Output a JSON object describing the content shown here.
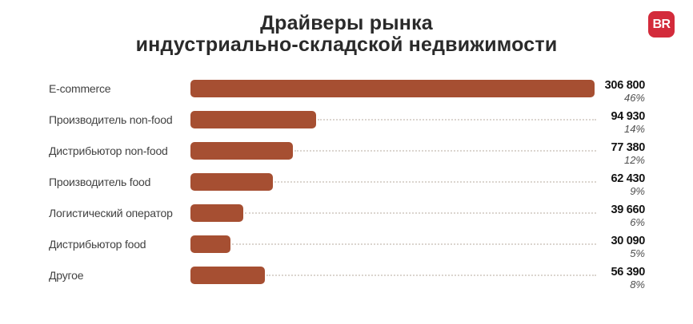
{
  "header": {
    "title_line1": "Драйверы рынка",
    "title_line2": "индустриально-складской недвижимости",
    "logo_text": "BR"
  },
  "colors": {
    "bar": "#a64f32",
    "logo_bg": "#d32b3b",
    "leader_line": "#dbd5cf"
  },
  "chart_data": {
    "type": "bar",
    "orientation": "horizontal",
    "title": "Драйверы рынка индустриально-складской недвижимости",
    "categories": [
      "E-commerce",
      "Производитель non-food",
      "Дистрибьютор non-food",
      "Производитель food",
      "Логистический оператор",
      "Дистрибьютор food",
      "Другое"
    ],
    "values": [
      306800,
      94930,
      77380,
      62430,
      39660,
      30090,
      56390
    ],
    "percentages": [
      46,
      14,
      12,
      9,
      6,
      5,
      8
    ],
    "value_labels": [
      "306 800",
      "94 930",
      "77 380",
      "62 430",
      "39 660",
      "30 090",
      "56 390"
    ],
    "percent_labels": [
      "46%",
      "14%",
      "12%",
      "9%",
      "6%",
      "5%",
      "8%"
    ],
    "xlim": [
      0,
      306800
    ],
    "grid": false,
    "legend": "none",
    "bar_color": "#a64f32"
  }
}
